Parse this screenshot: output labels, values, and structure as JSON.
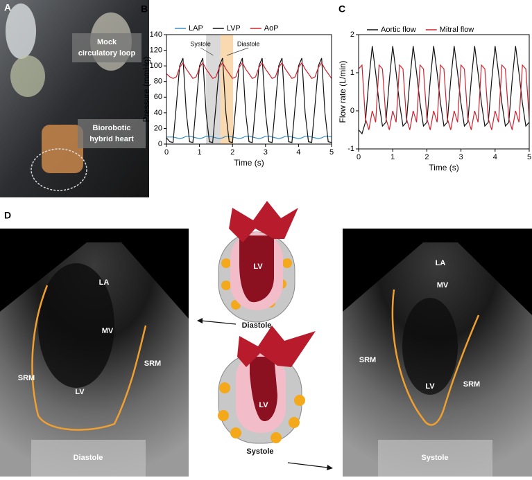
{
  "panel_labels": [
    "A",
    "B",
    "C",
    "D"
  ],
  "photo": {
    "labels": [
      [
        "Mock",
        "circulatory loop"
      ],
      [
        "Biorobotic",
        "hybrid heart"
      ]
    ]
  },
  "chart_data": [
    {
      "type": "line",
      "xlabel": "Time (s)",
      "ylabel": "Pressure (mmHg)",
      "x": [
        0,
        0.1,
        0.2,
        0.3,
        0.4,
        0.5,
        0.6,
        0.7,
        0.8,
        0.9,
        1,
        1.1,
        1.2,
        1.3,
        1.4,
        1.5,
        1.6,
        1.7,
        1.8,
        1.9,
        2,
        2.1,
        2.2,
        2.3,
        2.4,
        2.5,
        2.6,
        2.7,
        2.8,
        2.9,
        3,
        3.1,
        3.2,
        3.3,
        3.4,
        3.5,
        3.6,
        3.7,
        3.8,
        3.9,
        4,
        4.1,
        4.2,
        4.3,
        4.4,
        4.5,
        4.6,
        4.7,
        4.8,
        4.9,
        5
      ],
      "xlim": [
        0,
        5
      ],
      "xticks": [
        0,
        1,
        2,
        3,
        4,
        5
      ],
      "ylim": [
        0,
        140
      ],
      "yticks": [
        0,
        20,
        40,
        60,
        80,
        100,
        120,
        140
      ],
      "legend": "top",
      "series": [
        {
          "name": "LAP",
          "color": "#3b8fc4",
          "values": [
            9,
            9,
            9,
            8,
            7,
            8,
            10,
            10,
            9,
            8,
            7,
            8,
            10,
            10,
            9,
            8,
            7,
            8,
            10,
            10,
            9,
            8,
            7,
            8,
            10,
            10,
            9,
            8,
            7,
            8,
            10,
            10,
            9,
            8,
            7,
            8,
            10,
            10,
            9,
            8,
            7,
            8,
            10,
            10,
            9,
            8,
            7,
            8,
            10,
            10,
            9
          ]
        },
        {
          "name": "LVP",
          "color": "#111111",
          "values": [
            8,
            3,
            2,
            50,
            100,
            110,
            40,
            3,
            2,
            50,
            100,
            110,
            40,
            3,
            2,
            50,
            100,
            110,
            40,
            3,
            2,
            50,
            100,
            110,
            40,
            3,
            2,
            50,
            100,
            110,
            40,
            3,
            2,
            50,
            100,
            110,
            40,
            3,
            2,
            50,
            100,
            110,
            40,
            3,
            2,
            50,
            100,
            110,
            40,
            3,
            2
          ]
        },
        {
          "name": "AoP",
          "color": "#d0202e",
          "values": [
            90,
            86,
            84,
            86,
            98,
            104,
            96,
            90,
            84,
            86,
            98,
            104,
            96,
            90,
            84,
            86,
            98,
            104,
            96,
            90,
            84,
            86,
            98,
            104,
            96,
            90,
            84,
            86,
            98,
            104,
            96,
            90,
            84,
            86,
            98,
            104,
            96,
            90,
            84,
            86,
            98,
            104,
            96,
            90,
            84,
            86,
            98,
            104,
            96,
            90,
            84
          ]
        }
      ],
      "annotations": [
        {
          "text": "Systole",
          "x0": 1.2,
          "x1": 1.64,
          "color": "#d9d9d9"
        },
        {
          "text": "Diastole",
          "x0": 1.64,
          "x1": 2.02,
          "color": "#f9d9b0"
        }
      ]
    },
    {
      "type": "line",
      "xlabel": "Time (s)",
      "ylabel": "Flow rate (L/min)",
      "x": [
        0,
        0.1,
        0.2,
        0.3,
        0.4,
        0.5,
        0.6,
        0.7,
        0.8,
        0.9,
        1,
        1.1,
        1.2,
        1.3,
        1.4,
        1.5,
        1.6,
        1.7,
        1.8,
        1.9,
        2,
        2.1,
        2.2,
        2.3,
        2.4,
        2.5,
        2.6,
        2.7,
        2.8,
        2.9,
        3,
        3.1,
        3.2,
        3.3,
        3.4,
        3.5,
        3.6,
        3.7,
        3.8,
        3.9,
        4,
        4.1,
        4.2,
        4.3,
        4.4,
        4.5,
        4.6,
        4.7,
        4.8,
        4.9,
        5
      ],
      "xlim": [
        0,
        5
      ],
      "xticks": [
        0,
        1,
        2,
        3,
        4,
        5
      ],
      "ylim": [
        -1,
        2
      ],
      "yticks": [
        -1,
        0,
        1,
        2
      ],
      "legend": "top",
      "series": [
        {
          "name": "Aortic flow",
          "color": "#111111",
          "values": [
            -0.5,
            -0.6,
            -0.3,
            0.8,
            1.7,
            1.0,
            0.2,
            -0.4,
            -0.3,
            0.8,
            1.7,
            1.0,
            0.2,
            -0.4,
            -0.3,
            0.8,
            1.7,
            1.0,
            0.2,
            -0.4,
            -0.3,
            0.8,
            1.7,
            1.0,
            0.2,
            -0.4,
            -0.3,
            0.8,
            1.7,
            1.0,
            0.2,
            -0.4,
            -0.3,
            0.8,
            1.7,
            1.0,
            0.2,
            -0.4,
            -0.3,
            0.8,
            1.7,
            1.0,
            0.2,
            -0.4,
            -0.3,
            0.8,
            1.7,
            1.0,
            0.2,
            -0.4,
            -0.3
          ]
        },
        {
          "name": "Mitral flow",
          "color": "#d0202e",
          "values": [
            1.1,
            1.2,
            -0.2,
            -0.5,
            0.0,
            -0.3,
            1.2,
            1.1,
            -0.2,
            -0.5,
            0.0,
            -0.3,
            1.2,
            1.1,
            -0.2,
            -0.5,
            0.0,
            -0.3,
            1.2,
            1.1,
            -0.2,
            -0.5,
            0.0,
            -0.3,
            1.2,
            1.1,
            -0.2,
            -0.5,
            0.0,
            -0.3,
            1.2,
            1.1,
            -0.2,
            -0.5,
            0.0,
            -0.3,
            1.2,
            1.1,
            -0.2,
            -0.5,
            0.0,
            -0.3,
            1.2,
            1.1,
            -0.2,
            -0.5,
            0.0,
            -0.3,
            1.2,
            1.1,
            -0.2
          ]
        }
      ]
    }
  ],
  "echo": [
    {
      "labels": [
        "LA",
        "MV",
        "SRM",
        "LV",
        "SRM"
      ],
      "phase": "Diastole"
    },
    {
      "labels": [
        "LA",
        "MV",
        "SRM",
        "LV",
        "SRM"
      ],
      "phase": "Systole"
    }
  ],
  "schematic": [
    {
      "label": "LV",
      "phase": "Diastole"
    },
    {
      "label": "LV",
      "phase": "Systole"
    }
  ]
}
